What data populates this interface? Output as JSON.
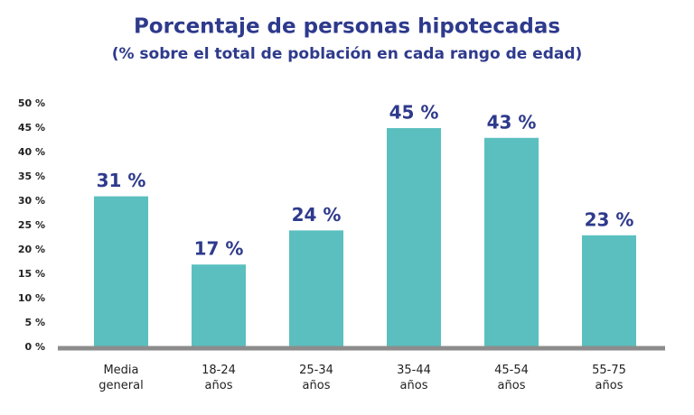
{
  "chart_data": {
    "type": "bar",
    "title": "Porcentaje de personas hipotecadas",
    "subtitle": "(% sobre el total de población en cada rango de edad)",
    "categories": [
      "Media general",
      "18-24 años",
      "25-34 años",
      "35-44 años",
      "45-54 años",
      "55-75 años"
    ],
    "values": [
      31,
      17,
      24,
      45,
      43,
      23
    ],
    "value_labels": [
      "31 %",
      "17 %",
      "24 %",
      "45 %",
      "43 %",
      "23 %"
    ],
    "color": "#5bbfbf",
    "ylim": [
      0,
      50
    ],
    "yticks": [
      {
        "value": 0,
        "label": "0 %"
      },
      {
        "value": 5,
        "label": "5 %"
      },
      {
        "value": 10,
        "label": "10 %"
      },
      {
        "value": 15,
        "label": "15 %"
      },
      {
        "value": 20,
        "label": "20 %"
      },
      {
        "value": 25,
        "label": "25 %"
      },
      {
        "value": 30,
        "label": "30 %"
      },
      {
        "value": 35,
        "label": "35 %"
      },
      {
        "value": 40,
        "label": "40 %"
      },
      {
        "value": 45,
        "label": "45 %"
      },
      {
        "value": 50,
        "label": "50 %"
      }
    ],
    "grid": false
  }
}
